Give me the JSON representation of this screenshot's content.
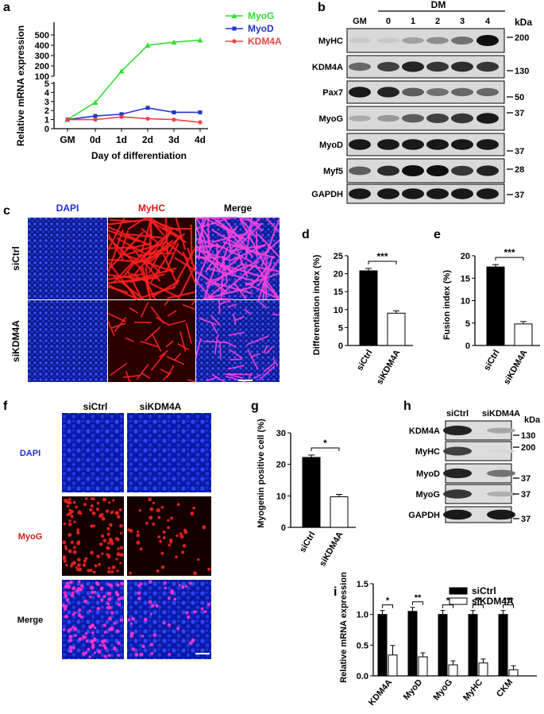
{
  "panel_letters": {
    "a": "a",
    "b": "b",
    "c": "c",
    "d": "d",
    "e": "e",
    "f": "f",
    "g": "g",
    "h": "h",
    "i": "i"
  },
  "colors": {
    "myog": "#33dd33",
    "myod": "#2233cc",
    "kdm4a": "#ee4444",
    "dapi": "#1f2fd6",
    "red": "#d41818",
    "bar_dark": "#000000",
    "bar_light": "#ffffff"
  },
  "panel_a": {
    "ylabel": "Relative mRNA expression",
    "xlabel": "Day of differentiation",
    "categories": [
      "GM",
      "0d",
      "1d",
      "2d",
      "3d",
      "4d"
    ],
    "upper_ticks": [
      "500",
      "400",
      "300",
      "200",
      "100"
    ],
    "lower_ticks": [
      "5",
      "4",
      "3",
      "2",
      "1",
      "0"
    ],
    "legend": [
      "MyoG",
      "MyoD",
      "KDM4A"
    ]
  },
  "panel_b": {
    "group_label": "DM",
    "lanes": [
      "GM",
      "0",
      "1",
      "2",
      "3",
      "4"
    ],
    "unit": "kDa",
    "blots": [
      {
        "name": "MyHC",
        "kda": "200"
      },
      {
        "name": "KDM4A",
        "kda": "130"
      },
      {
        "name": "Pax7",
        "kda": "50"
      },
      {
        "name": "MyoG",
        "kda": "37"
      },
      {
        "name": "MyoD",
        "kda": "37"
      },
      {
        "name": "Myf5",
        "kda": "28"
      },
      {
        "name": "GAPDH",
        "kda": "37"
      }
    ]
  },
  "panel_c": {
    "cols": [
      "DAPI",
      "MyHC",
      "Merge"
    ],
    "rows": [
      "siCtrl",
      "siKDM4A"
    ]
  },
  "panel_d": {
    "ylabel": "Differentiation index (%)",
    "ticks": [
      "25",
      "20",
      "15",
      "10",
      "5",
      "0"
    ],
    "sig": "***"
  },
  "panel_e": {
    "ylabel": "Fusion index (%)",
    "ticks": [
      "20",
      "15",
      "10",
      "5",
      "0"
    ],
    "sig": "***"
  },
  "panel_f": {
    "cols": [
      "siCtrl",
      "siKDM4A"
    ],
    "rows": [
      "DAPI",
      "MyoG",
      "Merge"
    ]
  },
  "panel_g": {
    "ylabel": "Myogenin positive cell (%)",
    "ticks": [
      "30",
      "20",
      "10",
      "0"
    ],
    "sig": "*"
  },
  "panel_h": {
    "lanes": [
      "siCtrl",
      "siKDM4A"
    ],
    "unit": "kDa",
    "blots": [
      {
        "name": "KDM4A",
        "kda": "130"
      },
      {
        "name": "MyHC",
        "kda": "200"
      },
      {
        "name": "MyoD",
        "kda": "37"
      },
      {
        "name": "MyoG",
        "kda": "37"
      },
      {
        "name": "GAPDH",
        "kda": "37"
      }
    ]
  },
  "panel_i": {
    "ylabel": "Relative mRNA expression",
    "ticks": [
      "1.5",
      "1.0",
      "0.5",
      "0.0"
    ],
    "sigs": [
      "*",
      "**",
      "*",
      "**",
      "***"
    ]
  },
  "chart_data": [
    {
      "type": "line",
      "xlabel": "Day of differentiation",
      "ylabel": "Relative mRNA expression",
      "x": [
        "GM",
        "0d",
        "1d",
        "2d",
        "3d",
        "4d"
      ],
      "axis": "broken: 0-5 and 100-500",
      "series": [
        {
          "name": "MyoG",
          "values": [
            1,
            2.9,
            150,
            400,
            430,
            450
          ]
        },
        {
          "name": "MyoD",
          "values": [
            1,
            1.4,
            1.6,
            2.3,
            1.8,
            1.8
          ]
        },
        {
          "name": "KDM4A",
          "values": [
            1,
            1.0,
            1.3,
            1.1,
            1.0,
            0.7
          ]
        }
      ]
    },
    {
      "type": "bar",
      "categories": [
        "siCtrl",
        "siKDM4A"
      ],
      "values": [
        20.8,
        9.0
      ],
      "ylabel": "Differentiation index (%)",
      "ylim": [
        0,
        25
      ]
    },
    {
      "type": "bar",
      "categories": [
        "siCtrl",
        "siKDM4A"
      ],
      "values": [
        17.5,
        4.8
      ],
      "ylabel": "Fusion index (%)",
      "ylim": [
        0,
        20
      ]
    },
    {
      "type": "bar",
      "categories": [
        "siCtrl",
        "siKDM4A"
      ],
      "values": [
        22.2,
        9.7
      ],
      "ylabel": "Myogenin positive cell (%)",
      "ylim": [
        0,
        30
      ]
    },
    {
      "type": "bar",
      "ylabel": "Relative mRNA expression",
      "ylim": [
        0,
        1.5
      ],
      "categories": [
        "KDM4A",
        "MyoD",
        "MyoG",
        "MyHC",
        "CKM"
      ],
      "series": [
        {
          "name": "siCtrl",
          "values": [
            1.0,
            1.05,
            1.0,
            1.0,
            1.0
          ]
        },
        {
          "name": "siKDM4A",
          "values": [
            0.34,
            0.31,
            0.18,
            0.21,
            0.1
          ]
        }
      ]
    }
  ]
}
